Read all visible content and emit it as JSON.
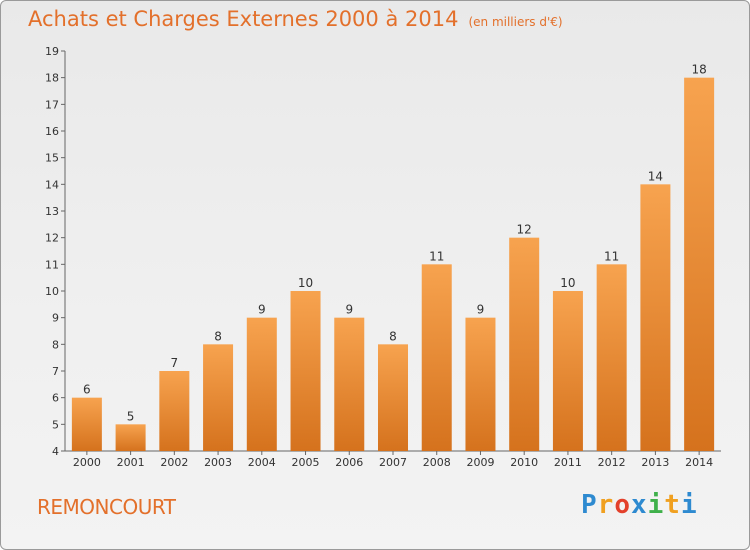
{
  "title": "Achats et Charges Externes 2000 à 2014",
  "unit": "(en milliers d'€)",
  "commune": "REMONCOURT",
  "logo": {
    "letters": [
      "P",
      "r",
      "o",
      "x",
      "i",
      "t",
      "i"
    ],
    "colors": [
      "#2e8ad0",
      "#f0a020",
      "#e3402b",
      "#2e8ad0",
      "#3fb04a",
      "#f0a020",
      "#2e8ad0"
    ]
  },
  "colors": {
    "accent": "#e3702b",
    "bar_top": "#f7a34f",
    "bar_bottom": "#d5721d"
  },
  "chart_data": {
    "type": "bar",
    "categories": [
      "2000",
      "2001",
      "2002",
      "2003",
      "2004",
      "2005",
      "2006",
      "2007",
      "2008",
      "2009",
      "2010",
      "2011",
      "2012",
      "2013",
      "2014"
    ],
    "values": [
      6,
      5,
      7,
      8,
      9,
      10,
      9,
      8,
      11,
      9,
      12,
      10,
      11,
      14,
      18
    ],
    "ylim": [
      4,
      19
    ],
    "yticks": [
      4,
      5,
      6,
      7,
      8,
      9,
      10,
      11,
      12,
      13,
      14,
      15,
      16,
      17,
      18,
      19
    ],
    "grid": false
  }
}
